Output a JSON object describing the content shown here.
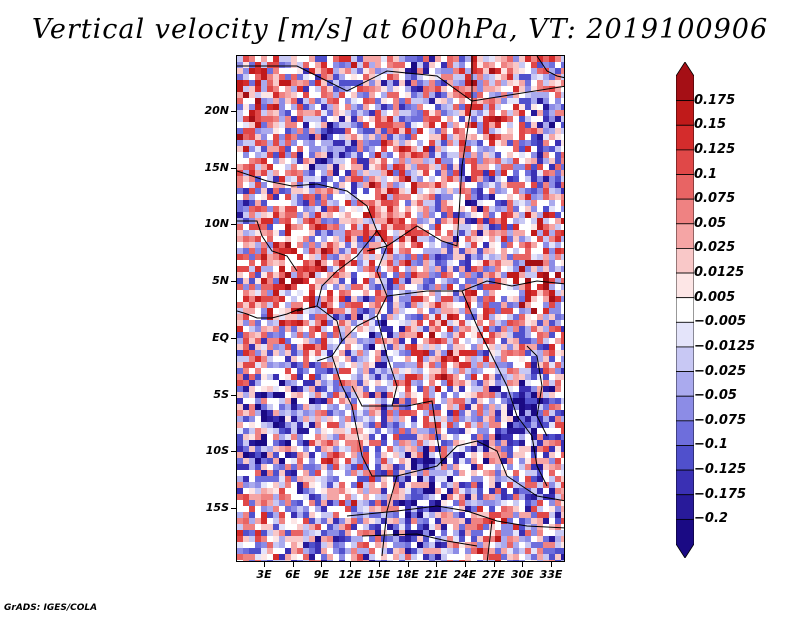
{
  "title": "Vertical velocity [m/s] at 600hPa, VT: 2019100906",
  "credit": "GrADS: IGES/COLA",
  "map": {
    "lat_labels": [
      "20N",
      "15N",
      "10N",
      "5N",
      "EQ",
      "5S",
      "10S",
      "15S"
    ],
    "lon_labels": [
      "3E",
      "6E",
      "9E",
      "12E",
      "15E",
      "18E",
      "21E",
      "24E",
      "27E",
      "30E",
      "33E"
    ],
    "colors": {
      "strong_positive": "#b2182b",
      "positive": "#f4a5a5",
      "neutral": "#ffffff",
      "negative": "#a8a8ee",
      "strong_negative": "#2a1a9e",
      "boundary": "#000000"
    }
  },
  "colorbar": {
    "labels": [
      "0.175",
      "0.15",
      "0.125",
      "0.1",
      "0.075",
      "0.05",
      "0.025",
      "0.0125",
      "0.005",
      "−0.005",
      "−0.0125",
      "−0.025",
      "−0.05",
      "−0.075",
      "−0.1",
      "−0.125",
      "−0.175",
      "−0.2"
    ],
    "colors": [
      "#a50f15",
      "#c01a1a",
      "#d42c2c",
      "#e04848",
      "#e86464",
      "#ef8282",
      "#f5a5a5",
      "#f9c8c8",
      "#fde6e6",
      "#ffffff",
      "#e4e4fa",
      "#c8c8f4",
      "#aaaaee",
      "#8c8ce6",
      "#6e6edc",
      "#5050cc",
      "#3a30b4",
      "#281a9a",
      "#1a0a84"
    ]
  }
}
